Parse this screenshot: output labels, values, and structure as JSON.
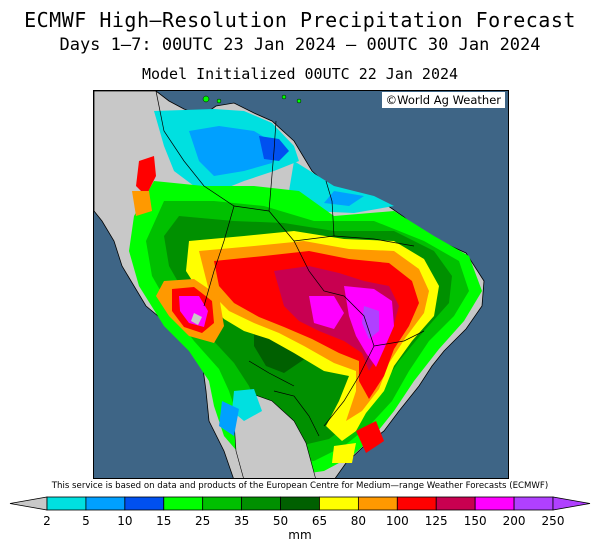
{
  "title": "ECMWF High—Resolution Precipitation Forecast",
  "subtitle": "Days 1—7: 00UTC 23 Jan 2024 — 00UTC 30 Jan 2024",
  "init": "Model Initialized 00UTC 22 Jan 2024",
  "credit": "©World Ag Weather",
  "service_note": "This service is based on data and products of the European Centre for Medium—range Weather Forecasts (ECMWF)",
  "legend": {
    "units": "mm",
    "ticks": [
      "2",
      "5",
      "10",
      "15",
      "25",
      "35",
      "50",
      "65",
      "80",
      "100",
      "125",
      "150",
      "200",
      "250"
    ],
    "colors": [
      "#00e0e0",
      "#00a0ff",
      "#0050f0",
      "#00ff00",
      "#00c000",
      "#009000",
      "#006000",
      "#ffff00",
      "#ff9900",
      "#ff0000",
      "#c80050",
      "#ff00ff",
      "#b040ff"
    ]
  },
  "colors": {
    "ocean": "#3e6586",
    "no_data_land": "#c8c8c8"
  }
}
